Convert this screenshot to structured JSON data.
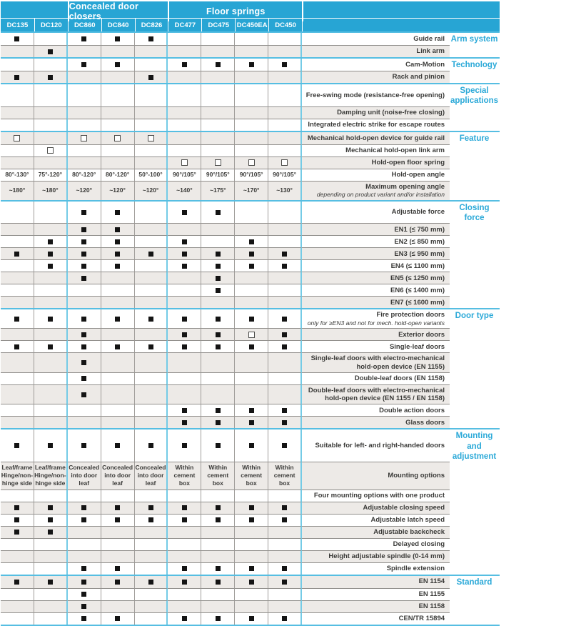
{
  "header": {
    "groups": [
      {
        "label": "",
        "span": 2
      },
      {
        "label": "Concealed door closers",
        "span": 3
      },
      {
        "label": "Floor springs",
        "span": 4
      }
    ],
    "columns": [
      "DC135",
      "DC120",
      "DC860",
      "DC840",
      "DC826",
      "DC477",
      "DC475",
      "DC450EA",
      "DC450"
    ]
  },
  "symbols": {
    "F": "filled-square",
    "H": "hollow-square"
  },
  "colors": {
    "header_bg": "#27A5D4",
    "category_text": "#2BA9D8",
    "section_line": "#56BEE2",
    "group_divider": "#74CBE6",
    "stripe": "#EDEAE7",
    "grid_line": "#918f8c",
    "text": "#3a3a38"
  },
  "sections": [
    {
      "category": "Arm system",
      "rows": [
        {
          "label": "Guide rail",
          "cells": [
            "F",
            "",
            "F",
            "F",
            "F",
            "",
            "",
            "",
            ""
          ]
        },
        {
          "label": "Link arm",
          "cells": [
            "",
            "F",
            "",
            "",
            "",
            "",
            "",
            "",
            ""
          ]
        }
      ]
    },
    {
      "category": "Technology",
      "rows": [
        {
          "label": "Cam-Motion",
          "cells": [
            "",
            "",
            "F",
            "F",
            "",
            "F",
            "F",
            "F",
            "F"
          ]
        },
        {
          "label": "Rack and pinion",
          "cells": [
            "F",
            "F",
            "",
            "",
            "F",
            "",
            "",
            "",
            ""
          ]
        }
      ]
    },
    {
      "category": "Special applications",
      "rows": [
        {
          "label": "Free-swing mode (resistance-free opening)",
          "cells": [
            "",
            "",
            "",
            "",
            "",
            "",
            "",
            "",
            ""
          ]
        },
        {
          "label": "Damping unit (noise-free closing)",
          "cells": [
            "",
            "",
            "",
            "",
            "",
            "",
            "",
            "",
            ""
          ]
        },
        {
          "label": "Integrated electric strike for escape routes",
          "cells": [
            "",
            "",
            "",
            "",
            "",
            "",
            "",
            "",
            ""
          ]
        }
      ]
    },
    {
      "category": "Feature",
      "rows": [
        {
          "label": "Mechanical hold-open device for guide rail",
          "cells": [
            "H",
            "",
            "H",
            "H",
            "H",
            "",
            "",
            "",
            ""
          ]
        },
        {
          "label": "Mechanical hold-open link arm",
          "cells": [
            "",
            "H",
            "",
            "",
            "",
            "",
            "",
            "",
            ""
          ]
        },
        {
          "label": "Hold-open floor spring",
          "cells": [
            "",
            "",
            "",
            "",
            "",
            "H",
            "H",
            "H",
            "H"
          ]
        },
        {
          "label": "Hold-open angle",
          "cells": [
            "80°-130°",
            "75°-120°",
            "80°-120°",
            "80°-120°",
            "50°-100°",
            "90°/105°",
            "90°/105°",
            "90°/105°",
            "90°/105°"
          ]
        },
        {
          "label": "Maximum opening angle",
          "sublabel": "depending on product variant and/or installation",
          "cells": [
            "~180°",
            "~180°",
            "~120°",
            "~120°",
            "~120°",
            "~140°",
            "~175°",
            "~170°",
            "~130°"
          ]
        }
      ]
    },
    {
      "category": "Closing force",
      "rows": [
        {
          "label": "Adjustable force",
          "cells": [
            "",
            "",
            "F",
            "F",
            "",
            "F",
            "F",
            "",
            ""
          ]
        },
        {
          "label": "EN1 (≤ 750 mm)",
          "cells": [
            "",
            "",
            "F",
            "F",
            "",
            "",
            "",
            "",
            ""
          ]
        },
        {
          "label": "EN2 (≤ 850 mm)",
          "cells": [
            "",
            "F",
            "F",
            "F",
            "",
            "F",
            "",
            "F",
            ""
          ]
        },
        {
          "label": "EN3 (≤ 950 mm)",
          "cells": [
            "F",
            "F",
            "F",
            "F",
            "F",
            "F",
            "F",
            "F",
            "F"
          ]
        },
        {
          "label": "EN4 (≤ 1100 mm)",
          "cells": [
            "",
            "F",
            "F",
            "F",
            "",
            "F",
            "F",
            "F",
            "F"
          ]
        },
        {
          "label": "EN5 (≤ 1250 mm)",
          "cells": [
            "",
            "",
            "F",
            "",
            "",
            "",
            "F",
            "",
            ""
          ]
        },
        {
          "label": "EN6 (≤ 1400 mm)",
          "cells": [
            "",
            "",
            "",
            "",
            "",
            "",
            "F",
            "",
            ""
          ]
        },
        {
          "label": "EN7 (≤ 1600 mm)",
          "cells": [
            "",
            "",
            "",
            "",
            "",
            "",
            "",
            "",
            ""
          ]
        }
      ]
    },
    {
      "category": "Door type",
      "rows": [
        {
          "label": "Fire protection doors",
          "sublabel": "only for ≥EN3 and not for mech. hold-open variants",
          "cells": [
            "F",
            "F",
            "F",
            "F",
            "F",
            "F",
            "F",
            "F",
            "F"
          ]
        },
        {
          "label": "Exterior doors",
          "cells": [
            "",
            "",
            "F",
            "",
            "",
            "F",
            "F",
            "H",
            "F"
          ]
        },
        {
          "label": "Single-leaf doors",
          "cells": [
            "F",
            "F",
            "F",
            "F",
            "F",
            "F",
            "F",
            "F",
            "F"
          ]
        },
        {
          "label": "Single-leaf doors with electro-mechanical hold-open device (EN 1155)",
          "cells": [
            "",
            "",
            "F",
            "",
            "",
            "",
            "",
            "",
            ""
          ]
        },
        {
          "label": "Double-leaf doors (EN 1158)",
          "cells": [
            "",
            "",
            "F",
            "",
            "",
            "",
            "",
            "",
            ""
          ]
        },
        {
          "label": "Double-leaf doors with electro-mechanical hold-open device (EN 1155 / EN 1158)",
          "cells": [
            "",
            "",
            "F",
            "",
            "",
            "",
            "",
            "",
            ""
          ]
        },
        {
          "label": "Double action doors",
          "cells": [
            "",
            "",
            "",
            "",
            "",
            "F",
            "F",
            "F",
            "F"
          ]
        },
        {
          "label": "Glass doors",
          "cells": [
            "",
            "",
            "",
            "",
            "",
            "F",
            "F",
            "F",
            "F"
          ]
        }
      ]
    },
    {
      "category": "Mounting and adjustment",
      "rows": [
        {
          "label": "Suitable for left- and right-handed doors",
          "cells": [
            "F",
            "F",
            "F",
            "F",
            "F",
            "F",
            "F",
            "F",
            "F"
          ]
        },
        {
          "label": "Mounting options",
          "cells": [
            "Leaf/frame\nHinge/non-hinge side",
            "Leaf/frame\nHinge/non-hinge side",
            "Concealed into door leaf",
            "Concealed into door leaf",
            "Concealed into door leaf",
            "Within cement box",
            "Within cement box",
            "Within cement box",
            "Within cement box"
          ]
        },
        {
          "label": "Four mounting options with one product",
          "cells": [
            "",
            "",
            "",
            "",
            "",
            "",
            "",
            "",
            ""
          ]
        },
        {
          "label": "Adjustable closing speed",
          "cells": [
            "F",
            "F",
            "F",
            "F",
            "F",
            "F",
            "F",
            "F",
            "F"
          ]
        },
        {
          "label": "Adjustable latch speed",
          "cells": [
            "F",
            "F",
            "F",
            "F",
            "F",
            "F",
            "F",
            "F",
            "F"
          ]
        },
        {
          "label": "Adjustable backcheck",
          "cells": [
            "F",
            "F",
            "",
            "",
            "",
            "",
            "",
            "",
            ""
          ]
        },
        {
          "label": "Delayed closing",
          "cells": [
            "",
            "",
            "",
            "",
            "",
            "",
            "",
            "",
            ""
          ]
        },
        {
          "label": "Height adjustable spindle (0-14 mm)",
          "cells": [
            "",
            "",
            "",
            "",
            "",
            "",
            "",
            "",
            ""
          ]
        },
        {
          "label": "Spindle extension",
          "cells": [
            "",
            "",
            "F",
            "F",
            "",
            "F",
            "F",
            "F",
            "F"
          ]
        }
      ]
    },
    {
      "category": "Standard",
      "rows": [
        {
          "label": "EN 1154",
          "cells": [
            "F",
            "F",
            "F",
            "F",
            "F",
            "F",
            "F",
            "F",
            "F"
          ]
        },
        {
          "label": "EN 1155",
          "cells": [
            "",
            "",
            "F",
            "",
            "",
            "",
            "",
            "",
            ""
          ]
        },
        {
          "label": "EN 1158",
          "cells": [
            "",
            "",
            "F",
            "",
            "",
            "",
            "",
            "",
            ""
          ]
        },
        {
          "label": "CEN/TR 15894",
          "cells": [
            "",
            "",
            "F",
            "F",
            "",
            "F",
            "F",
            "F",
            "F"
          ]
        }
      ]
    }
  ]
}
